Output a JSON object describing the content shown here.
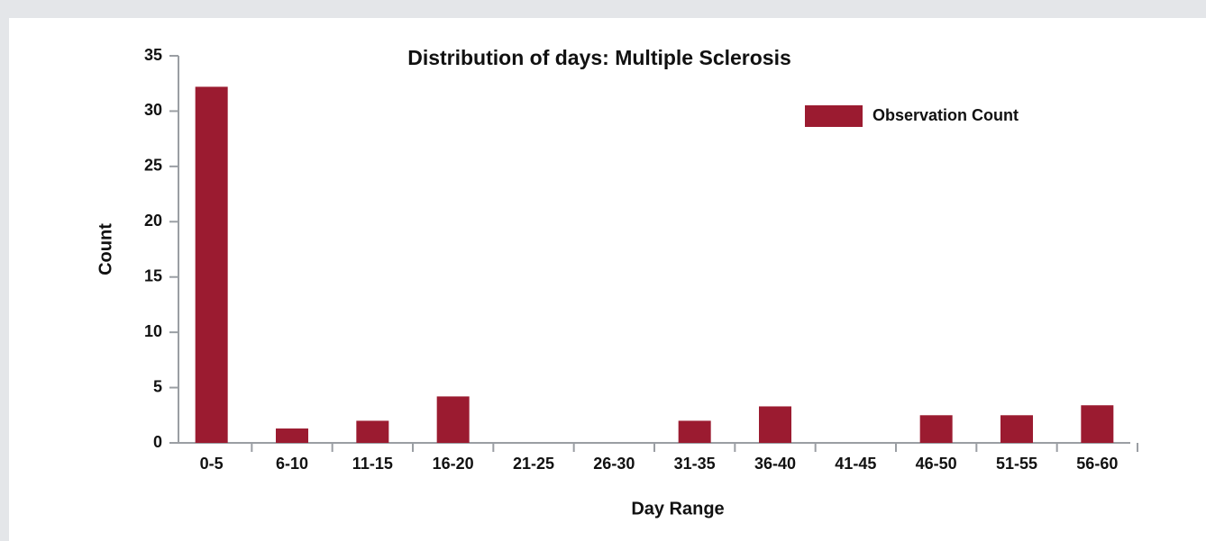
{
  "chart_data": {
    "type": "bar",
    "title": "Distribution of days: Multiple Sclerosis",
    "x_label": "Day Range",
    "y_label": "Count",
    "categories": [
      "0-5",
      "6-10",
      "11-15",
      "16-20",
      "21-25",
      "26-30",
      "31-35",
      "36-40",
      "41-45",
      "46-50",
      "51-55",
      "56-60"
    ],
    "series": [
      {
        "name": "Observation Count",
        "color": "#9b1b30",
        "values": [
          32.2,
          1.3,
          2.0,
          4.2,
          0,
          0,
          2.0,
          3.3,
          0,
          2.5,
          2.5,
          3.4
        ]
      }
    ],
    "ylim": [
      0,
      35
    ],
    "yticks": [
      0,
      5,
      10,
      15,
      20,
      25,
      30,
      35
    ],
    "legend": "upper right"
  }
}
